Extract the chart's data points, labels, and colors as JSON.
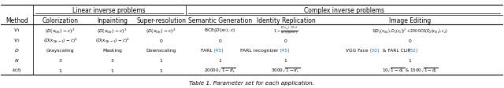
{
  "title": "Table 1. Parameter set for each application.",
  "figsize": [
    6.4,
    1.13
  ],
  "dpi": 100,
  "col_headers": [
    "Method",
    "Colorization",
    "Inpainting",
    "Super-resolution",
    "Semantic Generation",
    "Identity Replication",
    "Image Editing"
  ],
  "background_color": "#ffffff",
  "text_color": "#000000",
  "ref_color": "#1a6faf"
}
